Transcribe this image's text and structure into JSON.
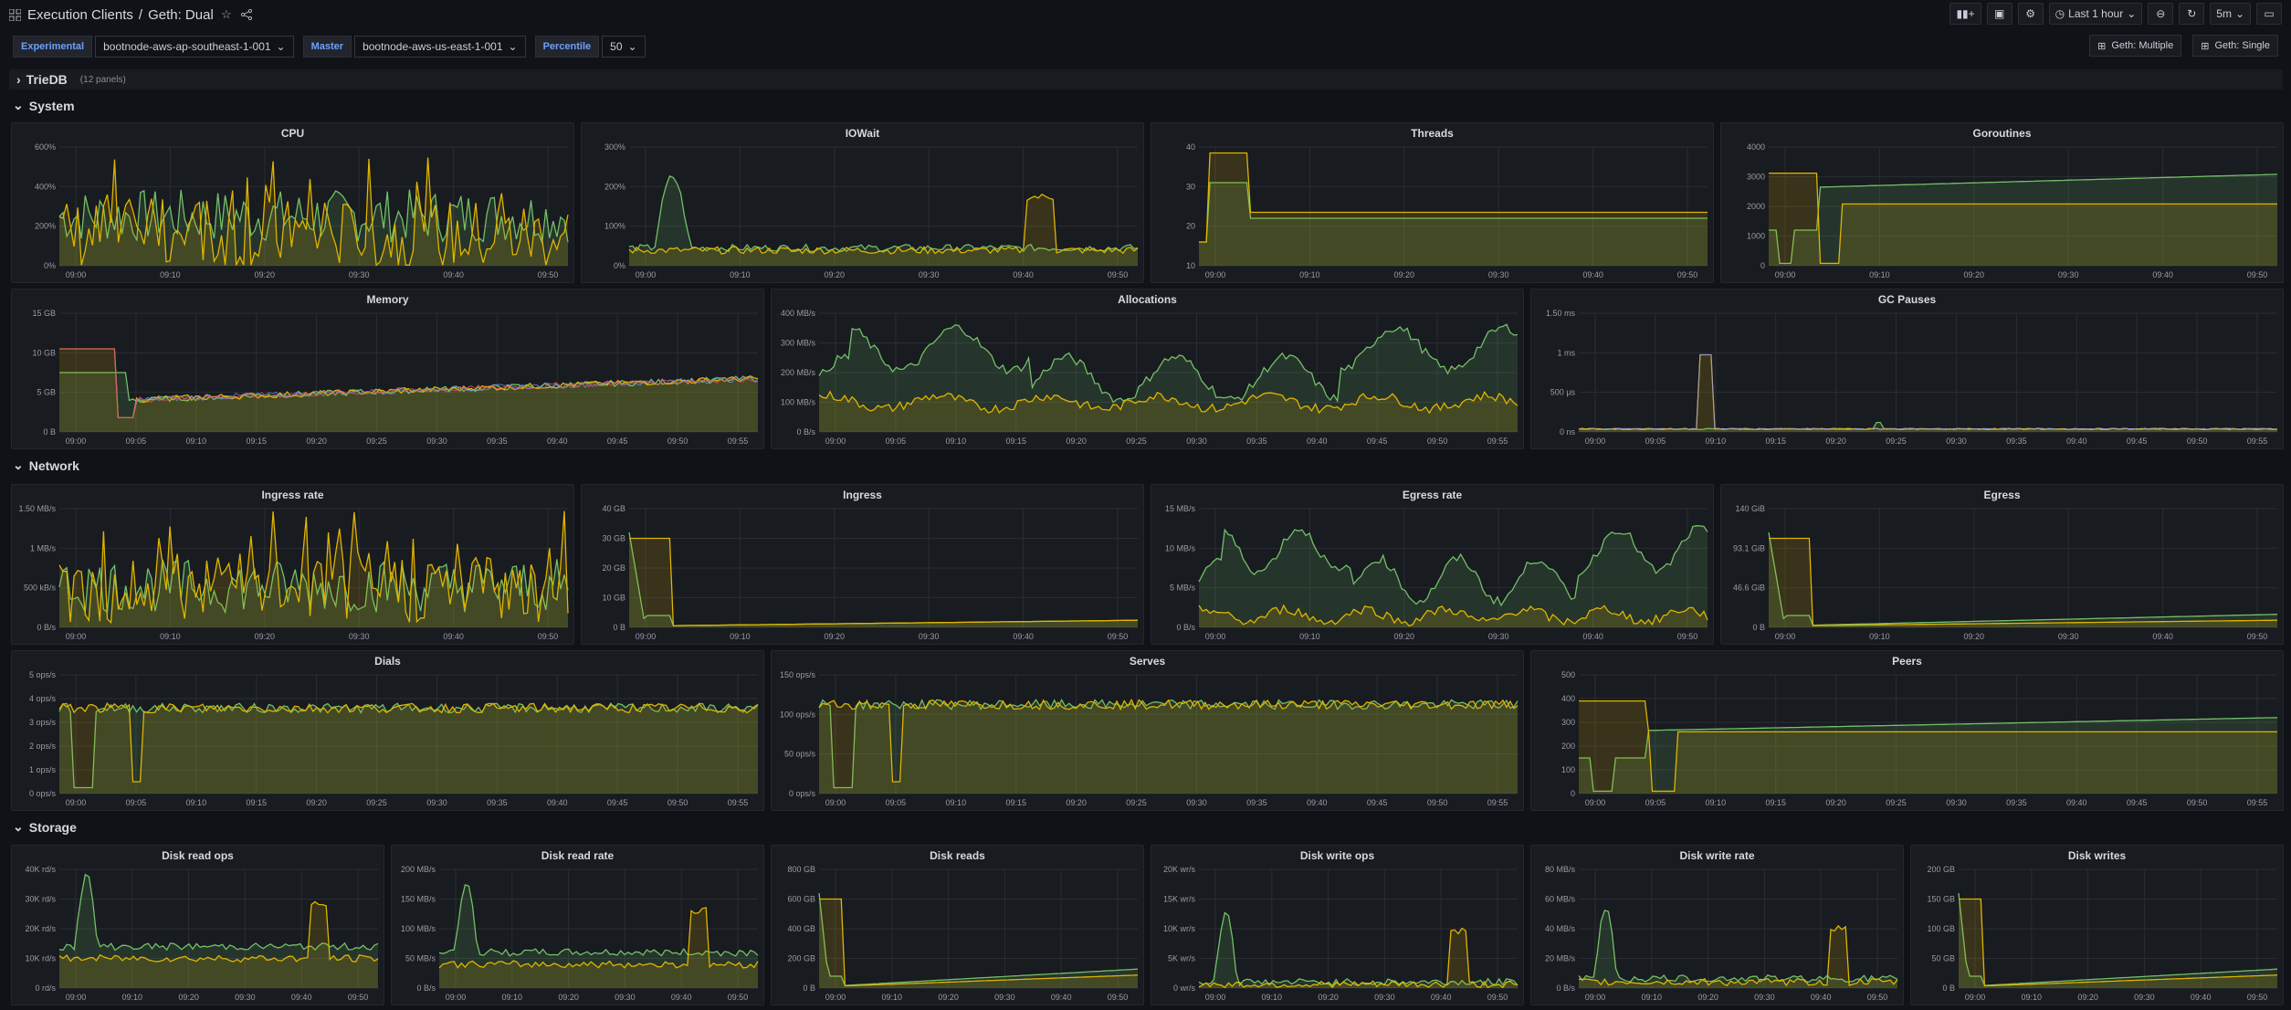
{
  "header": {
    "title": "Execution Clients",
    "separator": "/",
    "dashboard": "Geth: Dual",
    "time_range": "Last 1 hour",
    "refresh": "5m"
  },
  "variables": [
    {
      "label": "Experimental",
      "value": "bootnode-aws-ap-southeast-1-001"
    },
    {
      "label": "Master",
      "value": "bootnode-aws-us-east-1-001"
    },
    {
      "label": "Percentile",
      "value": "50"
    }
  ],
  "links": {
    "multiple": "Geth: Multiple",
    "single": "Geth: Single"
  },
  "rows": {
    "triedb": "TrieDB",
    "triedb_count": "(12 panels)",
    "system": "System",
    "network": "Network",
    "storage": "Storage"
  },
  "colors": {
    "green": "#73bf69",
    "yellow": "#e0b400",
    "orange": "#ff9830",
    "red": "#f2495c",
    "blue": "#5794f2",
    "purple": "#8f8ff2"
  },
  "panels": [
    {
      "id": "cpu",
      "title": "CPU",
      "yticks": [
        "600%",
        "400%",
        "200%",
        "0%"
      ],
      "xticks": [
        "09:00",
        "09:10",
        "09:20",
        "09:30",
        "09:40",
        "09:50"
      ],
      "series": "noisy",
      "levels": [
        0.42,
        0.25
      ]
    },
    {
      "id": "iowait",
      "title": "IOWait",
      "yticks": [
        "300%",
        "200%",
        "100%",
        "0%"
      ],
      "xticks": [
        "09:00",
        "09:10",
        "09:20",
        "09:30",
        "09:40",
        "09:50"
      ],
      "series": "iowait",
      "levels": [
        0.15,
        0.13
      ]
    },
    {
      "id": "threads",
      "title": "Threads",
      "yticks": [
        "40",
        "30",
        "20",
        "10"
      ],
      "xticks": [
        "09:00",
        "09:10",
        "09:20",
        "09:30",
        "09:40",
        "09:50"
      ],
      "series": "step",
      "levels": [
        0.4,
        0.42
      ]
    },
    {
      "id": "goroutines",
      "title": "Goroutines",
      "yticks": [
        "4000",
        "3000",
        "2000",
        "1000",
        "0"
      ],
      "xticks": [
        "09:00",
        "09:10",
        "09:20",
        "09:30",
        "09:40",
        "09:50"
      ],
      "series": "goroutines",
      "levels": [
        0.65,
        0.52
      ]
    },
    {
      "id": "memory",
      "title": "Memory",
      "yticks": [
        "15 GB",
        "10 GB",
        "5 GB",
        "0 B"
      ],
      "xticks": [
        "09:00",
        "09:05",
        "09:10",
        "09:15",
        "09:20",
        "09:25",
        "09:30",
        "09:35",
        "09:40",
        "09:45",
        "09:50",
        "09:55"
      ],
      "series": "memory",
      "levels": [
        0.45,
        0.42
      ]
    },
    {
      "id": "allocations",
      "title": "Allocations",
      "yticks": [
        "400 MB/s",
        "300 MB/s",
        "200 MB/s",
        "100 MB/s",
        "0 B/s"
      ],
      "xticks": [
        "09:00",
        "09:05",
        "09:10",
        "09:15",
        "09:20",
        "09:25",
        "09:30",
        "09:35",
        "09:40",
        "09:45",
        "09:50",
        "09:55"
      ],
      "series": "bumpy",
      "levels": [
        0.45,
        0.25
      ]
    },
    {
      "id": "gcpauses",
      "title": "GC Pauses",
      "yticks": [
        "1.50 ms",
        "1 ms",
        "500 µs",
        "0 ns"
      ],
      "xticks": [
        "09:00",
        "09:05",
        "09:10",
        "09:15",
        "09:20",
        "09:25",
        "09:30",
        "09:35",
        "09:40",
        "09:45",
        "09:50",
        "09:55"
      ],
      "series": "spike",
      "levels": [
        0.02,
        0.02
      ]
    },
    {
      "id": "ingressrate",
      "title": "Ingress rate",
      "yticks": [
        "1.50 MB/s",
        "1 MB/s",
        "500 kB/s",
        "0 B/s"
      ],
      "xticks": [
        "09:00",
        "09:10",
        "09:20",
        "09:30",
        "09:40",
        "09:50"
      ],
      "series": "noisy",
      "levels": [
        0.35,
        0.33
      ]
    },
    {
      "id": "ingress",
      "title": "Ingress",
      "yticks": [
        "40 GB",
        "30 GB",
        "20 GB",
        "10 GB",
        "0 B"
      ],
      "xticks": [
        "09:00",
        "09:10",
        "09:20",
        "09:30",
        "09:40",
        "09:50"
      ],
      "series": "drop",
      "levels": [
        0.05,
        0.05
      ]
    },
    {
      "id": "egressrate",
      "title": "Egress rate",
      "yticks": [
        "15 MB/s",
        "10 MB/s",
        "5 MB/s",
        "0 B/s"
      ],
      "xticks": [
        "09:00",
        "09:10",
        "09:20",
        "09:30",
        "09:40",
        "09:50"
      ],
      "series": "bumpy",
      "levels": [
        0.4,
        0.1
      ]
    },
    {
      "id": "egress",
      "title": "Egress",
      "yticks": [
        "140 GiB",
        "93.1 GiB",
        "46.6 GiB",
        "0 B"
      ],
      "xticks": [
        "09:00",
        "09:10",
        "09:20",
        "09:30",
        "09:40",
        "09:50"
      ],
      "series": "drop",
      "levels": [
        0.1,
        0.05
      ]
    },
    {
      "id": "dials",
      "title": "Dials",
      "yticks": [
        "5 ops/s",
        "4 ops/s",
        "3 ops/s",
        "2 ops/s",
        "1 ops/s",
        "0 ops/s"
      ],
      "xticks": [
        "09:00",
        "09:05",
        "09:10",
        "09:15",
        "09:20",
        "09:25",
        "09:30",
        "09:35",
        "09:40",
        "09:45",
        "09:50",
        "09:55"
      ],
      "series": "flat",
      "levels": [
        0.72,
        0.72
      ]
    },
    {
      "id": "serves",
      "title": "Serves",
      "yticks": [
        "150 ops/s",
        "100 ops/s",
        "50 ops/s",
        "0 ops/s"
      ],
      "xticks": [
        "09:00",
        "09:05",
        "09:10",
        "09:15",
        "09:20",
        "09:25",
        "09:30",
        "09:35",
        "09:40",
        "09:45",
        "09:50",
        "09:55"
      ],
      "series": "flat",
      "levels": [
        0.75,
        0.75
      ]
    },
    {
      "id": "peers",
      "title": "Peers",
      "yticks": [
        "500",
        "400",
        "300",
        "200",
        "100",
        "0"
      ],
      "xticks": [
        "09:00",
        "09:05",
        "09:10",
        "09:15",
        "09:20",
        "09:25",
        "09:30",
        "09:35",
        "09:40",
        "09:45",
        "09:50",
        "09:55"
      ],
      "series": "goroutines",
      "levels": [
        0.52,
        0.52
      ]
    },
    {
      "id": "diskreadops",
      "title": "Disk read ops",
      "yticks": [
        "40K rd/s",
        "30K rd/s",
        "20K rd/s",
        "10K rd/s",
        "0 rd/s"
      ],
      "xticks": [
        "09:00",
        "09:10",
        "09:20",
        "09:30",
        "09:40",
        "09:50"
      ],
      "series": "iowait",
      "levels": [
        0.35,
        0.25
      ]
    },
    {
      "id": "diskreadrate",
      "title": "Disk read rate",
      "yticks": [
        "200 MB/s",
        "150 MB/s",
        "100 MB/s",
        "50 MB/s",
        "0 B/s"
      ],
      "xticks": [
        "09:00",
        "09:10",
        "09:20",
        "09:30",
        "09:40",
        "09:50"
      ],
      "series": "iowait",
      "levels": [
        0.3,
        0.2
      ]
    },
    {
      "id": "diskreads",
      "title": "Disk reads",
      "yticks": [
        "800 GB",
        "600 GB",
        "400 GB",
        "200 GB",
        "0 B"
      ],
      "xticks": [
        "09:00",
        "09:10",
        "09:20",
        "09:30",
        "09:40",
        "09:50"
      ],
      "series": "drop",
      "levels": [
        0.15,
        0.1
      ]
    },
    {
      "id": "diskwriteops",
      "title": "Disk write ops",
      "yticks": [
        "20K wr/s",
        "15K wr/s",
        "10K wr/s",
        "5K wr/s",
        "0 wr/s"
      ],
      "xticks": [
        "09:00",
        "09:10",
        "09:20",
        "09:30",
        "09:40",
        "09:50"
      ],
      "series": "iowait",
      "levels": [
        0.05,
        0.03
      ]
    },
    {
      "id": "diskwriterate",
      "title": "Disk write rate",
      "yticks": [
        "80 MB/s",
        "60 MB/s",
        "40 MB/s",
        "20 MB/s",
        "0 B/s"
      ],
      "xticks": [
        "09:00",
        "09:10",
        "09:20",
        "09:30",
        "09:40",
        "09:50"
      ],
      "series": "iowait",
      "levels": [
        0.08,
        0.05
      ]
    },
    {
      "id": "diskwrites",
      "title": "Disk writes",
      "yticks": [
        "200 GB",
        "150 GB",
        "100 GB",
        "50 GB",
        "0 B"
      ],
      "xticks": [
        "09:00",
        "09:10",
        "09:20",
        "09:30",
        "09:40",
        "09:50"
      ],
      "series": "drop",
      "levels": [
        0.15,
        0.1
      ]
    }
  ]
}
